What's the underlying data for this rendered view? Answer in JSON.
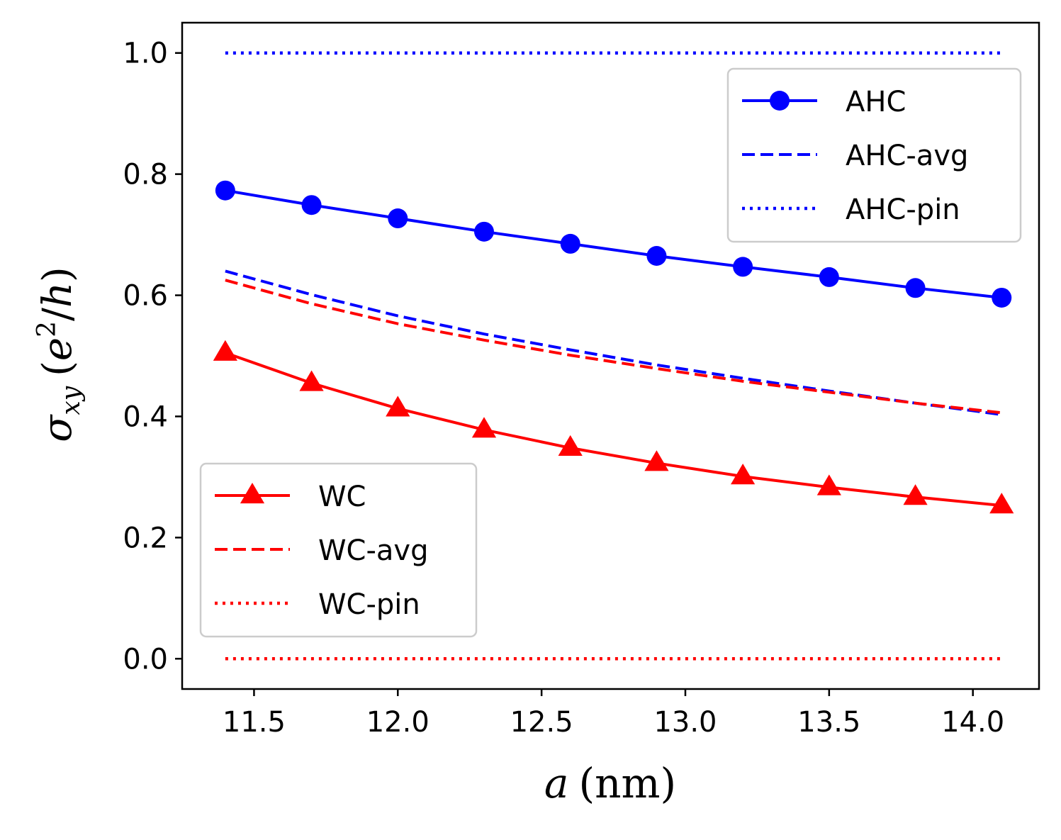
{
  "chart_data": {
    "type": "line",
    "title": "",
    "xlabel": {
      "var": "a",
      "unit": "(nm)"
    },
    "ylabel": {
      "sym": "σ",
      "sub": "xy",
      "open": "(",
      "base": "e",
      "sup": "2",
      "slash": "/",
      "den": "h",
      "close": ")"
    },
    "xlim": [
      11.25,
      14.23
    ],
    "ylim": [
      -0.05,
      1.05
    ],
    "xticks": [
      11.5,
      12.0,
      12.5,
      13.0,
      13.5,
      14.0
    ],
    "xtick_labels": [
      "11.5",
      "12.0",
      "12.5",
      "13.0",
      "13.5",
      "14.0"
    ],
    "yticks": [
      0.0,
      0.2,
      0.4,
      0.6,
      0.8,
      1.0
    ],
    "ytick_labels": [
      "0.0",
      "0.2",
      "0.4",
      "0.6",
      "0.8",
      "1.0"
    ],
    "grid": false,
    "x": [
      11.4,
      11.7,
      12.0,
      12.3,
      12.6,
      12.9,
      13.2,
      13.5,
      13.8,
      14.1
    ],
    "series": [
      {
        "name": "AHC",
        "color": "#0000ff",
        "style": "solid",
        "marker": "circle",
        "values": [
          0.773,
          0.749,
          0.727,
          0.705,
          0.685,
          0.665,
          0.647,
          0.63,
          0.612,
          0.596
        ]
      },
      {
        "name": "AHC-avg",
        "color": "#0000ff",
        "style": "dashed",
        "marker": "none",
        "values": [
          0.64,
          0.601,
          0.566,
          0.536,
          0.51,
          0.485,
          0.463,
          0.442,
          0.422,
          0.403
        ]
      },
      {
        "name": "AHC-pin",
        "color": "#0000ff",
        "style": "dotted",
        "marker": "none",
        "values": [
          1.0,
          1.0,
          1.0,
          1.0,
          1.0,
          1.0,
          1.0,
          1.0,
          1.0,
          1.0
        ]
      },
      {
        "name": "WC",
        "color": "#ff0000",
        "style": "solid",
        "marker": "triangle",
        "values": [
          0.505,
          0.455,
          0.413,
          0.378,
          0.348,
          0.323,
          0.301,
          0.283,
          0.267,
          0.253
        ]
      },
      {
        "name": "WC-avg",
        "color": "#ff0000",
        "style": "dashed",
        "marker": "none",
        "values": [
          0.625,
          0.586,
          0.553,
          0.526,
          0.501,
          0.479,
          0.458,
          0.44,
          0.422,
          0.406
        ]
      },
      {
        "name": "WC-pin",
        "color": "#ff0000",
        "style": "dotted",
        "marker": "none",
        "values": [
          0.0,
          0.0,
          0.0,
          0.0,
          0.0,
          0.0,
          0.0,
          0.0,
          0.0,
          0.0
        ]
      }
    ],
    "legends": [
      {
        "placement": "upper-right",
        "entries": [
          "AHC",
          "AHC-avg",
          "AHC-pin"
        ]
      },
      {
        "placement": "lower-left",
        "entries": [
          "WC",
          "WC-avg",
          "WC-pin"
        ]
      }
    ]
  }
}
